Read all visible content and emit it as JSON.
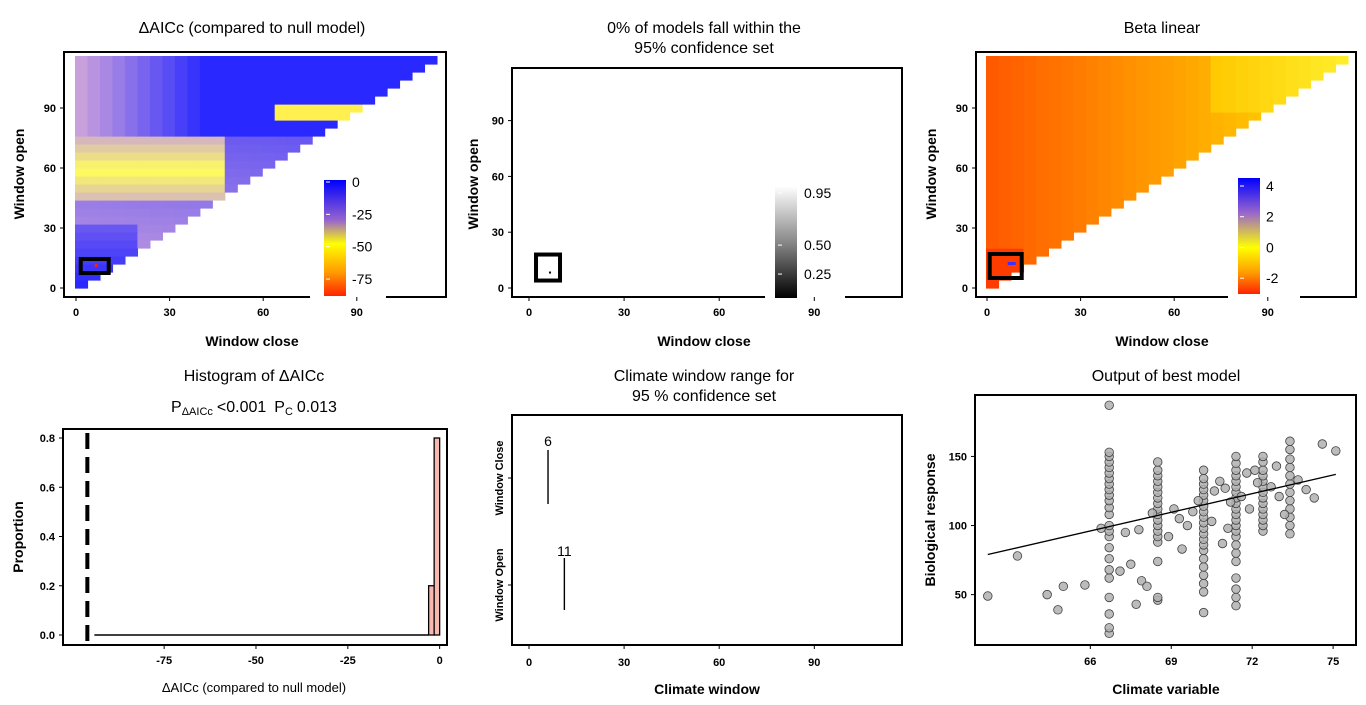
{
  "chart_data": [
    {
      "type": "heatmap",
      "title": "ΔAICc (compared to null model)",
      "xlabel": "Window close",
      "ylabel": "Window open",
      "xticks": [
        0,
        30,
        60,
        90
      ],
      "yticks": [
        0,
        30,
        60,
        90
      ],
      "xlim": [
        0,
        113
      ],
      "ylim": [
        0,
        113
      ],
      "legend": {
        "placement": "bottom-right",
        "labels": [
          "0",
          "-25",
          "-50",
          "-75"
        ],
        "values": [
          0,
          -25,
          -50,
          -75
        ],
        "colors": [
          "#0000ff",
          "#9966cc",
          "#ffff00",
          "#ff9900",
          "#ff2200"
        ]
      },
      "best_window": {
        "close": 6,
        "open": 11
      },
      "colors": {
        "low": "#ff2200",
        "mid": "#ffff00",
        "high": "#0000ff"
      }
    },
    {
      "type": "heatmap",
      "title": "0% of models fall within the\n95% confidence set",
      "title_lines": [
        "0% of models fall within the",
        "95% confidence set"
      ],
      "xlabel": "Window close",
      "ylabel": "Window open",
      "xticks": [
        0,
        30,
        60,
        90
      ],
      "yticks": [
        0,
        30,
        60,
        90
      ],
      "xlim": [
        0,
        113
      ],
      "ylim": [
        0,
        113
      ],
      "legend": {
        "placement": "bottom-right",
        "labels": [
          "0.95",
          "0.50",
          "0.25"
        ],
        "values": [
          0.95,
          0.5,
          0.25
        ]
      },
      "best_window": {
        "close": 6,
        "open": 11
      }
    },
    {
      "type": "heatmap",
      "title": "Beta linear",
      "xlabel": "Window close",
      "ylabel": "Window open",
      "xticks": [
        0,
        30,
        60,
        90
      ],
      "yticks": [
        0,
        30,
        60,
        90
      ],
      "xlim": [
        0,
        113
      ],
      "ylim": [
        0,
        113
      ],
      "legend": {
        "placement": "bottom-right",
        "labels": [
          "4",
          "2",
          "0",
          "-2"
        ],
        "values": [
          4,
          2,
          0,
          -2
        ],
        "colors": [
          "#0000ff",
          "#9966cc",
          "#ffff00",
          "#ff9900",
          "#ff2200"
        ]
      },
      "best_window": {
        "close": 6,
        "open": 11
      }
    },
    {
      "type": "bar",
      "title": "Histogram of ΔAICc",
      "subtitle": {
        "p1_label": "P",
        "p1_sub": "ΔAICc",
        "p1_value": "<0.001",
        "p2_label": "P",
        "p2_sub": "C",
        "p2_value": "0.013"
      },
      "xlabel": "ΔAICc (compared to null model)",
      "ylabel": "Proportion",
      "xticks": [
        -75,
        -50,
        -25,
        0
      ],
      "yticks": [
        0.0,
        0.2,
        0.4,
        0.6,
        0.8
      ],
      "ytick_labels": [
        "0.0",
        "0.2",
        "0.4",
        "0.6",
        "0.8"
      ],
      "xlim": [
        -96,
        2
      ],
      "ylim": [
        0,
        0.84
      ],
      "bins": [
        {
          "x0": -94,
          "x1": -3,
          "value": 0.0
        },
        {
          "x0": -3,
          "x1": -1.5,
          "value": 0.2
        },
        {
          "x0": -1.5,
          "x1": 0,
          "value": 0.8
        }
      ],
      "reference_line": -94,
      "colors": {
        "bar": "#f8b8b0"
      }
    },
    {
      "type": "line",
      "title": "Climate window range for\n95 % confidence set",
      "title_lines": [
        "Climate window range for",
        "95 % confidence set"
      ],
      "xlabel": "Climate window",
      "ylabel": "",
      "xticks": [
        0,
        30,
        60,
        90
      ],
      "xlim": [
        -3,
        116
      ],
      "categories": [
        "Window Close",
        "Window Open"
      ],
      "ranges": [
        {
          "category": "Window Close",
          "value": 6,
          "label": "6"
        },
        {
          "category": "Window Open",
          "value": 11,
          "label": "11"
        }
      ]
    },
    {
      "type": "scatter",
      "title": "Output of best model",
      "xlabel": "Climate variable",
      "ylabel": "Biological response",
      "xticks": [
        66,
        69,
        72,
        75
      ],
      "yticks": [
        50,
        100,
        150
      ],
      "xlim": [
        61.8,
        75.7
      ],
      "ylim": [
        15,
        193
      ],
      "line": {
        "x": [
          62.2,
          75.1
        ],
        "y": [
          79,
          137
        ]
      },
      "columns": [
        {
          "x": 66.7,
          "y": [
            22,
            26,
            36,
            48,
            62,
            68,
            76,
            84,
            92,
            96,
            100,
            108,
            113,
            118,
            122,
            126,
            130,
            134,
            138,
            142,
            146,
            150,
            153,
            187
          ]
        },
        {
          "x": 68.5,
          "y": [
            46,
            48,
            74,
            88,
            92,
            96,
            100,
            104,
            108,
            112,
            116,
            120,
            124,
            128,
            132,
            136,
            140,
            146
          ]
        },
        {
          "x": 70.2,
          "y": [
            37,
            52,
            58,
            64,
            70,
            76,
            82,
            86,
            90,
            94,
            98,
            102,
            106,
            110,
            114,
            118,
            122,
            126,
            130,
            134,
            140
          ]
        },
        {
          "x": 71.4,
          "y": [
            42,
            48,
            54,
            62,
            74,
            80,
            86,
            92,
            96,
            100,
            104,
            108,
            112,
            116,
            120,
            124,
            128,
            132,
            136,
            140,
            145,
            150
          ]
        },
        {
          "x": 72.4,
          "y": [
            96,
            100,
            104,
            108,
            112,
            116,
            120,
            124,
            128,
            132,
            136,
            140,
            146,
            150
          ]
        },
        {
          "x": 73.4,
          "y": [
            94,
            100,
            106,
            112,
            118,
            124,
            130,
            136,
            142,
            148,
            155,
            161
          ]
        }
      ],
      "points": [
        {
          "x": 62.2,
          "y": 49
        },
        {
          "x": 63.3,
          "y": 78
        },
        {
          "x": 64.4,
          "y": 50
        },
        {
          "x": 64.8,
          "y": 39
        },
        {
          "x": 65.0,
          "y": 56
        },
        {
          "x": 65.8,
          "y": 57
        },
        {
          "x": 66.4,
          "y": 98
        },
        {
          "x": 67.1,
          "y": 67
        },
        {
          "x": 67.3,
          "y": 95
        },
        {
          "x": 67.5,
          "y": 72
        },
        {
          "x": 67.7,
          "y": 43
        },
        {
          "x": 67.8,
          "y": 97
        },
        {
          "x": 67.9,
          "y": 60
        },
        {
          "x": 68.1,
          "y": 56
        },
        {
          "x": 68.3,
          "y": 109
        },
        {
          "x": 68.9,
          "y": 92
        },
        {
          "x": 69.1,
          "y": 112
        },
        {
          "x": 69.3,
          "y": 105
        },
        {
          "x": 69.4,
          "y": 83
        },
        {
          "x": 69.6,
          "y": 100
        },
        {
          "x": 69.8,
          "y": 110
        },
        {
          "x": 70.0,
          "y": 118
        },
        {
          "x": 70.5,
          "y": 103
        },
        {
          "x": 70.6,
          "y": 125
        },
        {
          "x": 70.8,
          "y": 132
        },
        {
          "x": 70.9,
          "y": 87
        },
        {
          "x": 71.0,
          "y": 127
        },
        {
          "x": 71.1,
          "y": 98
        },
        {
          "x": 71.2,
          "y": 117
        },
        {
          "x": 71.6,
          "y": 121
        },
        {
          "x": 71.8,
          "y": 138
        },
        {
          "x": 71.9,
          "y": 112
        },
        {
          "x": 72.1,
          "y": 140
        },
        {
          "x": 72.2,
          "y": 131
        },
        {
          "x": 72.7,
          "y": 128
        },
        {
          "x": 72.9,
          "y": 143
        },
        {
          "x": 73.0,
          "y": 121
        },
        {
          "x": 73.2,
          "y": 108
        },
        {
          "x": 73.7,
          "y": 133
        },
        {
          "x": 74.0,
          "y": 126
        },
        {
          "x": 74.3,
          "y": 120
        },
        {
          "x": 74.6,
          "y": 159
        },
        {
          "x": 75.1,
          "y": 154
        }
      ],
      "colors": {
        "point": "#b0b0b0",
        "point_edge": "#404040",
        "line": "#000000"
      }
    }
  ]
}
